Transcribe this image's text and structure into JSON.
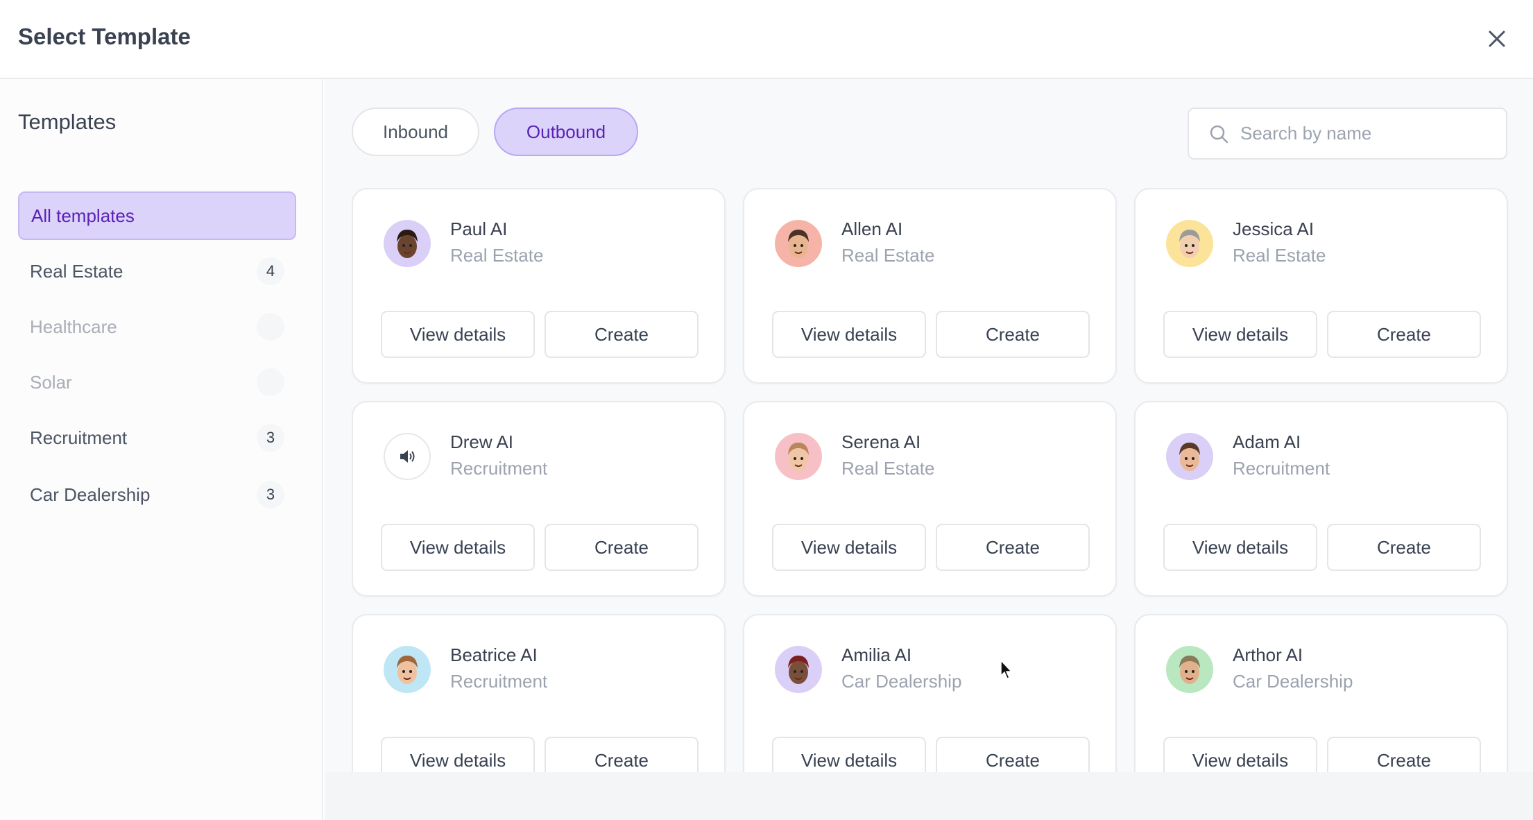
{
  "header": {
    "title": "Select Template",
    "close_icon": "close-icon"
  },
  "sidebar": {
    "title": "Templates",
    "items": [
      {
        "label": "All templates",
        "count": "",
        "state": "active"
      },
      {
        "label": "Real Estate",
        "count": "4",
        "state": "normal"
      },
      {
        "label": "Healthcare",
        "count": "",
        "state": "disabled"
      },
      {
        "label": "Solar",
        "count": "",
        "state": "disabled"
      },
      {
        "label": "Recruitment",
        "count": "3",
        "state": "normal"
      },
      {
        "label": "Car Dealership",
        "count": "3",
        "state": "normal"
      }
    ]
  },
  "tabs": [
    {
      "label": "Inbound",
      "active": false
    },
    {
      "label": "Outbound",
      "active": true
    }
  ],
  "search": {
    "placeholder": "Search by name",
    "value": ""
  },
  "buttons": {
    "view": "View details",
    "create": "Create"
  },
  "cards": [
    {
      "name": "Paul AI",
      "category": "Real Estate",
      "avatar_bg": "#d9cff7",
      "skin": "#6b4430",
      "hair": "#2a1a12"
    },
    {
      "name": "Allen AI",
      "category": "Real Estate",
      "avatar_bg": "#f6b3a8",
      "skin": "#e9b590",
      "hair": "#4a3326"
    },
    {
      "name": "Jessica AI",
      "category": "Real Estate",
      "avatar_bg": "#fbe39a",
      "skin": "#f1cfb0",
      "hair": "#9b9b9b"
    },
    {
      "name": "Drew AI",
      "category": "Recruitment",
      "avatar_bg": "#ffffff",
      "icon": "speaker-icon"
    },
    {
      "name": "Serena AI",
      "category": "Real Estate",
      "avatar_bg": "#f7c0c6",
      "skin": "#f0c7a6",
      "hair": "#b9855a"
    },
    {
      "name": "Adam AI",
      "category": "Recruitment",
      "avatar_bg": "#d9cff7",
      "skin": "#e9b998",
      "hair": "#5a3a26"
    },
    {
      "name": "Beatrice AI",
      "category": "Recruitment",
      "avatar_bg": "#bfe6f5",
      "skin": "#efc19e",
      "hair": "#a0673a"
    },
    {
      "name": "Amilia AI",
      "category": "Car Dealership",
      "avatar_bg": "#d9cff7",
      "skin": "#7a4f3a",
      "hair": "#7c1f1f"
    },
    {
      "name": "Arthor AI",
      "category": "Car Dealership",
      "avatar_bg": "#b9e8c0",
      "skin": "#e3b08c",
      "hair": "#8a7a5a"
    }
  ],
  "colors": {
    "accent": "#5b21b6",
    "accent_bg": "#dcd3fb"
  }
}
